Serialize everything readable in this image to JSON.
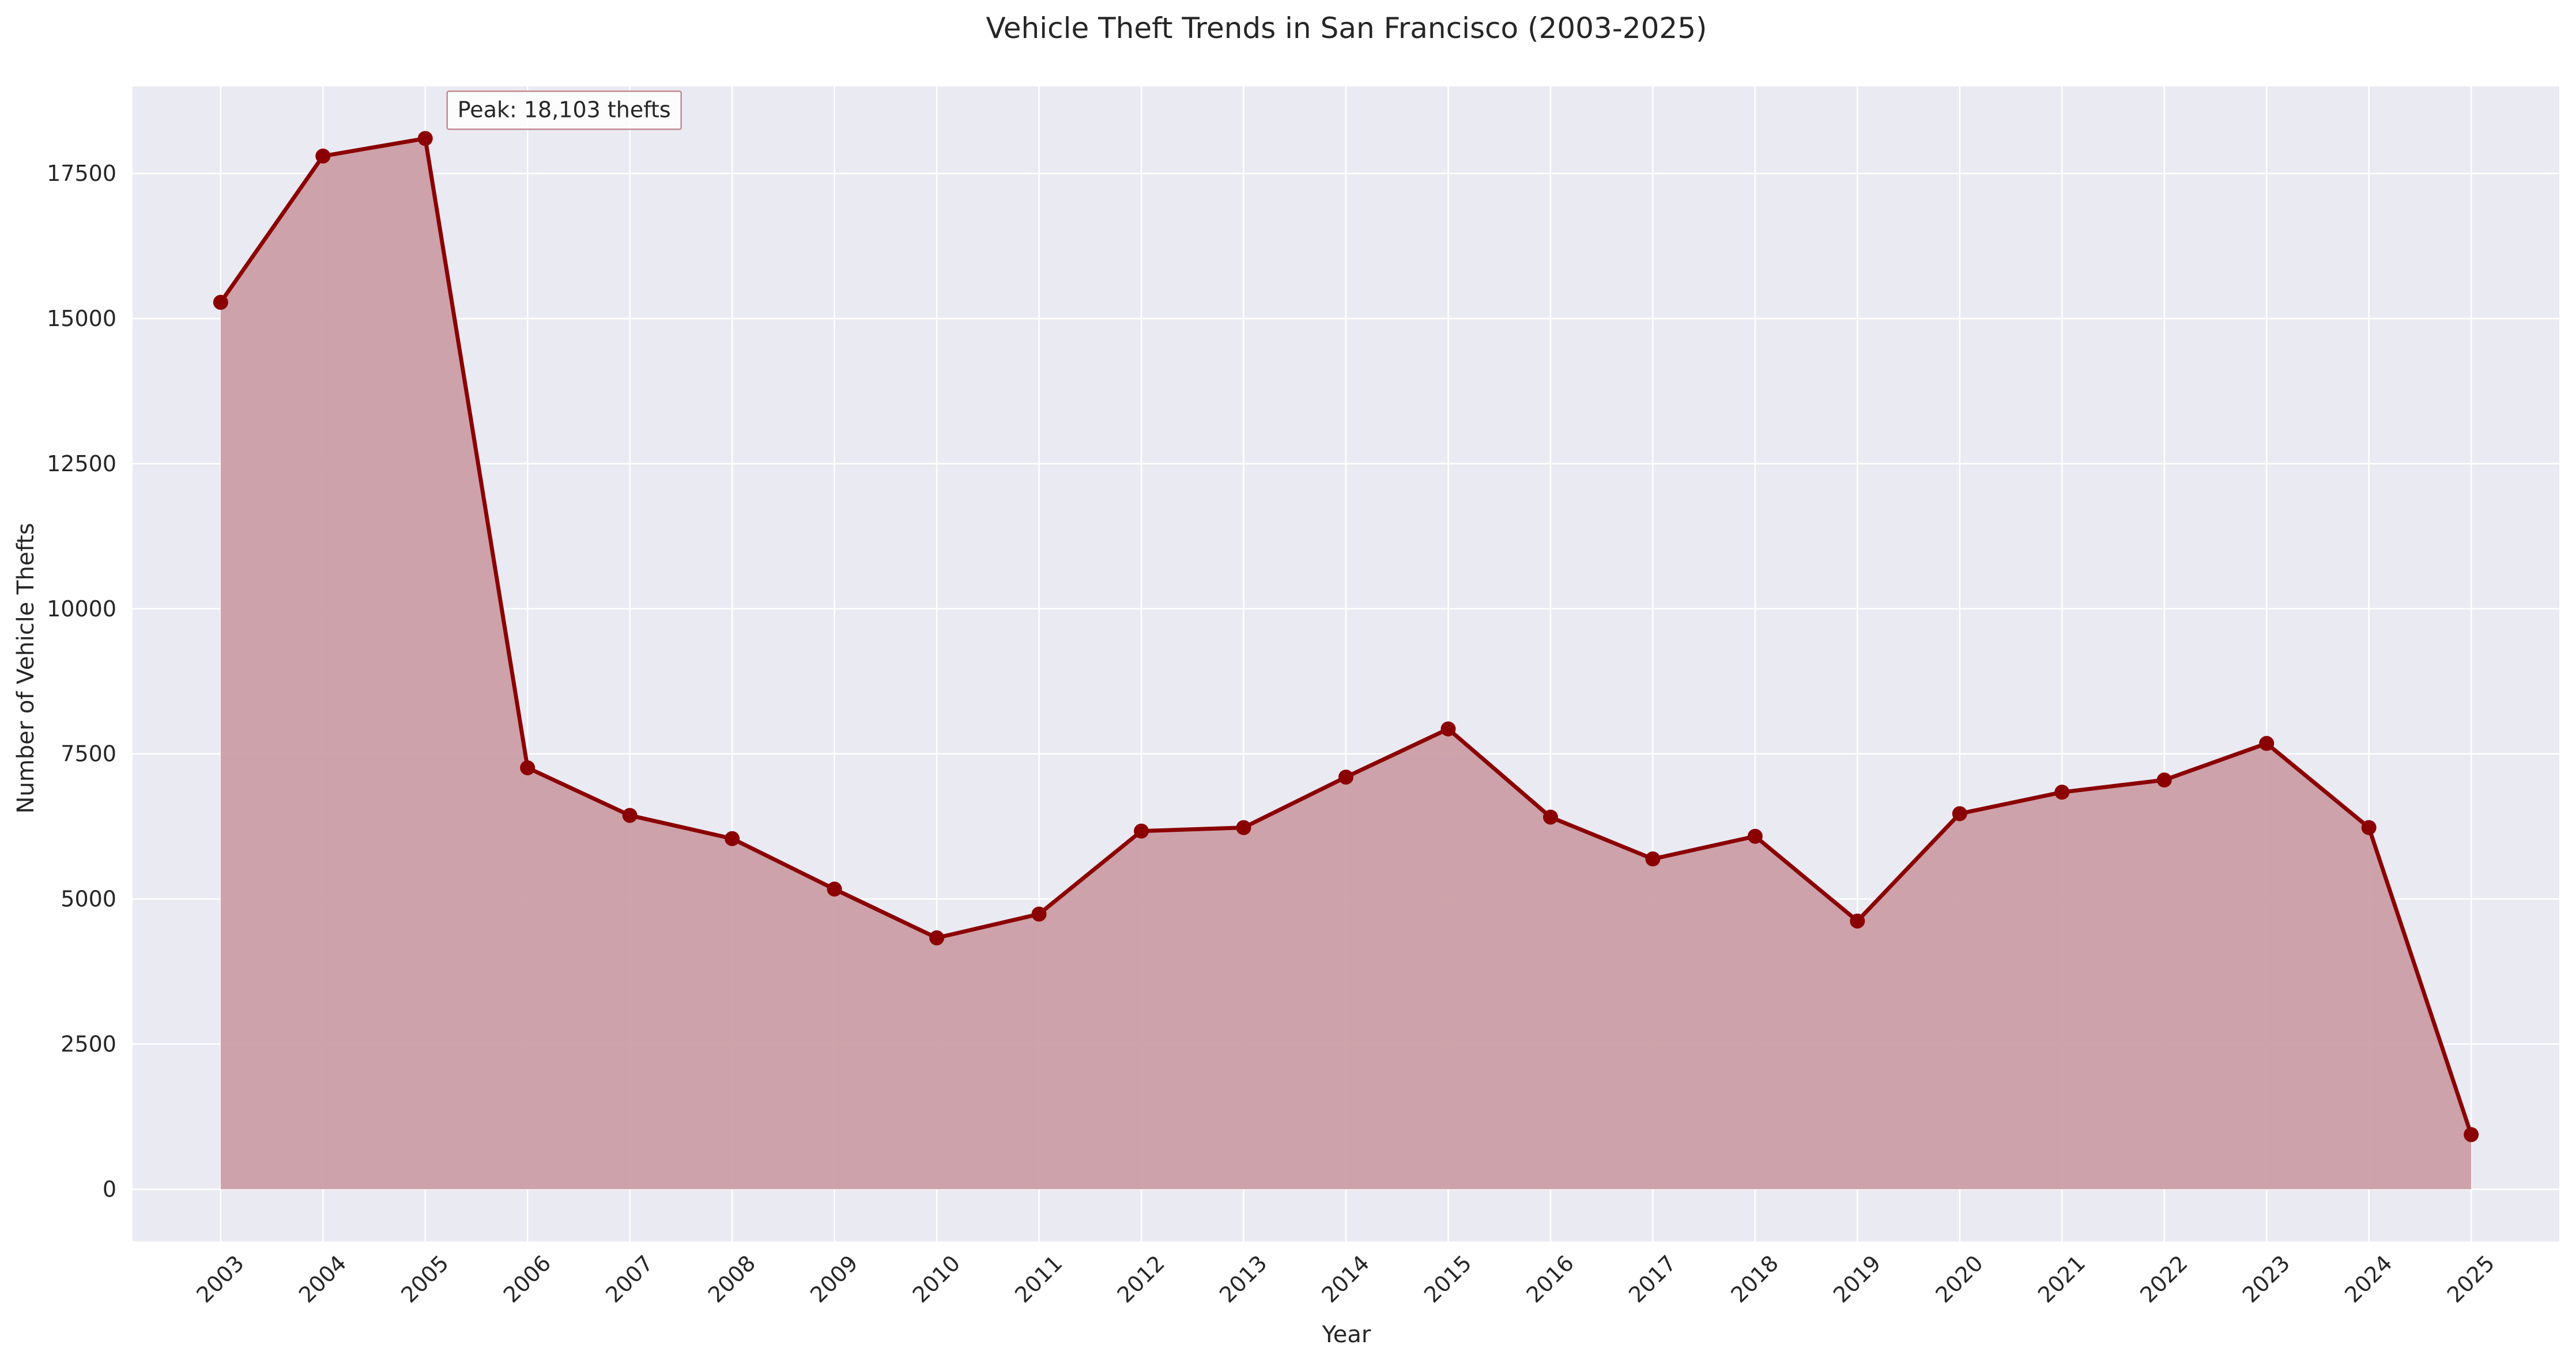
{
  "chart_data": {
    "type": "area",
    "title": "Vehicle Theft Trends in San Francisco (2003-2025)",
    "xlabel": "Year",
    "ylabel": "Number of Vehicle Thefts",
    "ylim": [
      -900,
      19000
    ],
    "yticks": [
      0,
      2500,
      5000,
      7500,
      10000,
      12500,
      15000,
      17500
    ],
    "grid": true,
    "legend": "none",
    "colors": {
      "line": "#8b0000",
      "fill": "#cb9ea5",
      "plot_bg": "#eaeaf2",
      "grid": "#ffffff"
    },
    "x": [
      "2003",
      "2004",
      "2005",
      "2006",
      "2007",
      "2008",
      "2009",
      "2010",
      "2011",
      "2012",
      "2013",
      "2014",
      "2015",
      "2016",
      "2017",
      "2018",
      "2019",
      "2020",
      "2021",
      "2022",
      "2023",
      "2024",
      "2025"
    ],
    "series": [
      {
        "values": [
          15280,
          17800,
          18103,
          7260,
          6440,
          6040,
          5170,
          4330,
          4740,
          6170,
          6230,
          7100,
          7930,
          6410,
          5690,
          6080,
          4620,
          6470,
          6840,
          7050,
          7680,
          6230,
          940
        ]
      }
    ],
    "annotation": {
      "text": "Peak: 18,103 thefts",
      "at_x": "2005",
      "at_y": 18103
    }
  }
}
